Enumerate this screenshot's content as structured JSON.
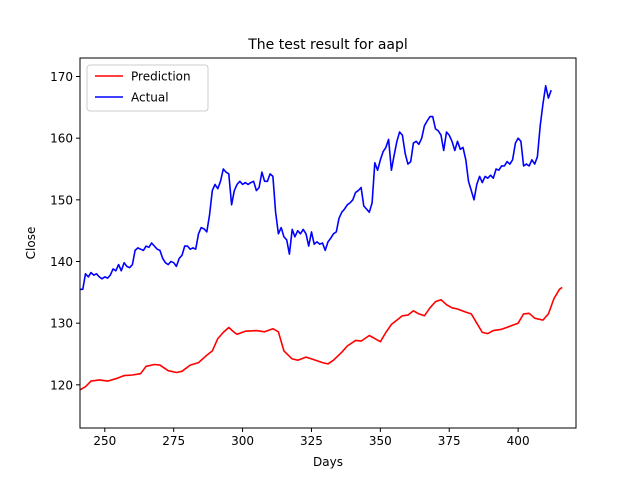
{
  "chart_data": {
    "type": "line",
    "title": "The test result for aapl",
    "xlabel": "Days",
    "ylabel": "Close",
    "xlim": [
      241,
      421
    ],
    "ylim": [
      113,
      173
    ],
    "xticks": [
      250,
      275,
      300,
      325,
      350,
      375,
      400
    ],
    "yticks": [
      120,
      130,
      140,
      150,
      160,
      170
    ],
    "grid": false,
    "legend_position": "top-left",
    "series": [
      {
        "name": "Prediction",
        "color": "#ff0000",
        "points": [
          [
            241,
            119.2
          ],
          [
            243,
            119.7
          ],
          [
            245,
            120.6
          ],
          [
            248,
            120.8
          ],
          [
            251,
            120.6
          ],
          [
            254,
            121.0
          ],
          [
            257,
            121.5
          ],
          [
            260,
            121.6
          ],
          [
            263,
            121.8
          ],
          [
            265,
            123.0
          ],
          [
            268,
            123.3
          ],
          [
            270,
            123.2
          ],
          [
            273,
            122.3
          ],
          [
            276,
            122.0
          ],
          [
            278,
            122.2
          ],
          [
            281,
            123.2
          ],
          [
            284,
            123.6
          ],
          [
            287,
            124.8
          ],
          [
            289,
            125.5
          ],
          [
            291,
            127.5
          ],
          [
            293,
            128.5
          ],
          [
            295,
            129.3
          ],
          [
            297,
            128.5
          ],
          [
            298,
            128.2
          ],
          [
            301,
            128.7
          ],
          [
            305,
            128.8
          ],
          [
            308,
            128.6
          ],
          [
            311,
            129.1
          ],
          [
            313,
            128.6
          ],
          [
            315,
            125.5
          ],
          [
            318,
            124.2
          ],
          [
            320,
            124.0
          ],
          [
            323,
            124.5
          ],
          [
            325,
            124.2
          ],
          [
            327,
            123.9
          ],
          [
            329,
            123.6
          ],
          [
            331,
            123.4
          ],
          [
            333,
            124.0
          ],
          [
            336,
            125.3
          ],
          [
            338,
            126.3
          ],
          [
            341,
            127.2
          ],
          [
            343,
            127.1
          ],
          [
            346,
            128.0
          ],
          [
            348,
            127.5
          ],
          [
            350,
            127.0
          ],
          [
            352,
            128.5
          ],
          [
            354,
            129.8
          ],
          [
            356,
            130.5
          ],
          [
            358,
            131.2
          ],
          [
            360,
            131.3
          ],
          [
            362,
            132.0
          ],
          [
            364,
            131.5
          ],
          [
            366,
            131.2
          ],
          [
            368,
            132.5
          ],
          [
            370,
            133.5
          ],
          [
            372,
            133.8
          ],
          [
            374,
            133.0
          ],
          [
            376,
            132.5
          ],
          [
            378,
            132.3
          ],
          [
            381,
            131.8
          ],
          [
            383,
            131.5
          ],
          [
            385,
            130.0
          ],
          [
            387,
            128.5
          ],
          [
            389,
            128.3
          ],
          [
            391,
            128.8
          ],
          [
            394,
            129.0
          ],
          [
            397,
            129.5
          ],
          [
            400,
            130.0
          ],
          [
            402,
            131.5
          ],
          [
            404,
            131.6
          ],
          [
            406,
            130.8
          ],
          [
            409,
            130.5
          ],
          [
            411,
            131.5
          ],
          [
            413,
            134.0
          ],
          [
            415,
            135.5
          ],
          [
            416,
            135.8
          ]
        ]
      },
      {
        "name": "Actual",
        "color": "#0000ff",
        "points": [
          [
            241,
            135.5
          ],
          [
            242,
            135.5
          ],
          [
            243,
            138.0
          ],
          [
            244,
            137.5
          ],
          [
            245,
            138.2
          ],
          [
            246,
            137.8
          ],
          [
            247,
            138.0
          ],
          [
            248,
            137.5
          ],
          [
            249,
            137.2
          ],
          [
            250,
            137.5
          ],
          [
            251,
            137.3
          ],
          [
            252,
            137.8
          ],
          [
            253,
            138.8
          ],
          [
            254,
            138.5
          ],
          [
            255,
            139.5
          ],
          [
            256,
            138.5
          ],
          [
            257,
            139.8
          ],
          [
            258,
            139.2
          ],
          [
            259,
            139.0
          ],
          [
            260,
            139.5
          ],
          [
            261,
            141.8
          ],
          [
            262,
            142.2
          ],
          [
            263,
            142.0
          ],
          [
            264,
            141.8
          ],
          [
            265,
            142.5
          ],
          [
            266,
            142.3
          ],
          [
            267,
            143.0
          ],
          [
            268,
            142.5
          ],
          [
            269,
            142.0
          ],
          [
            270,
            141.8
          ],
          [
            271,
            140.5
          ],
          [
            272,
            139.8
          ],
          [
            273,
            139.5
          ],
          [
            274,
            140.0
          ],
          [
            275,
            139.8
          ],
          [
            276,
            139.2
          ],
          [
            277,
            140.5
          ],
          [
            278,
            141.0
          ],
          [
            279,
            142.5
          ],
          [
            280,
            142.5
          ],
          [
            281,
            142.0
          ],
          [
            282,
            142.2
          ],
          [
            283,
            142.0
          ],
          [
            284,
            144.5
          ],
          [
            285,
            145.5
          ],
          [
            286,
            145.3
          ],
          [
            287,
            144.8
          ],
          [
            288,
            147.5
          ],
          [
            289,
            151.5
          ],
          [
            290,
            152.5
          ],
          [
            291,
            151.8
          ],
          [
            292,
            153.0
          ],
          [
            293,
            155.0
          ],
          [
            294,
            154.5
          ],
          [
            295,
            154.2
          ],
          [
            296,
            149.2
          ],
          [
            297,
            151.5
          ],
          [
            298,
            152.5
          ],
          [
            299,
            153.0
          ],
          [
            300,
            152.5
          ],
          [
            301,
            152.8
          ],
          [
            302,
            152.5
          ],
          [
            303,
            152.8
          ],
          [
            304,
            153.0
          ],
          [
            305,
            151.5
          ],
          [
            306,
            152.0
          ],
          [
            307,
            154.5
          ],
          [
            308,
            153.0
          ],
          [
            309,
            153.0
          ],
          [
            310,
            154.2
          ],
          [
            311,
            153.8
          ],
          [
            312,
            148.0
          ],
          [
            313,
            144.5
          ],
          [
            314,
            145.5
          ],
          [
            315,
            144.0
          ],
          [
            316,
            143.5
          ],
          [
            317,
            141.2
          ],
          [
            318,
            145.2
          ],
          [
            319,
            144.0
          ],
          [
            320,
            145.0
          ],
          [
            321,
            144.5
          ],
          [
            322,
            145.2
          ],
          [
            323,
            144.5
          ],
          [
            324,
            142.5
          ],
          [
            325,
            144.8
          ],
          [
            326,
            142.8
          ],
          [
            327,
            143.2
          ],
          [
            328,
            142.8
          ],
          [
            329,
            143.0
          ],
          [
            330,
            141.8
          ],
          [
            331,
            143.2
          ],
          [
            332,
            143.8
          ],
          [
            333,
            144.5
          ],
          [
            334,
            144.8
          ],
          [
            335,
            147.0
          ],
          [
            336,
            148.0
          ],
          [
            337,
            148.5
          ],
          [
            338,
            149.2
          ],
          [
            339,
            149.5
          ],
          [
            340,
            150.0
          ],
          [
            341,
            151.2
          ],
          [
            342,
            151.5
          ],
          [
            343,
            152.0
          ],
          [
            344,
            149.0
          ],
          [
            345,
            148.5
          ],
          [
            346,
            148.0
          ],
          [
            347,
            149.5
          ],
          [
            348,
            156.0
          ],
          [
            349,
            154.8
          ],
          [
            350,
            156.5
          ],
          [
            351,
            157.8
          ],
          [
            352,
            158.5
          ],
          [
            353,
            159.8
          ],
          [
            354,
            154.8
          ],
          [
            355,
            157.2
          ],
          [
            356,
            159.5
          ],
          [
            357,
            161.0
          ],
          [
            358,
            160.5
          ],
          [
            359,
            157.5
          ],
          [
            360,
            155.8
          ],
          [
            361,
            156.2
          ],
          [
            362,
            159.2
          ],
          [
            363,
            159.5
          ],
          [
            364,
            159.0
          ],
          [
            365,
            160.0
          ],
          [
            366,
            162.0
          ],
          [
            367,
            162.8
          ],
          [
            368,
            163.5
          ],
          [
            369,
            163.5
          ],
          [
            370,
            161.5
          ],
          [
            371,
            161.2
          ],
          [
            372,
            160.5
          ],
          [
            373,
            158.0
          ],
          [
            374,
            161.0
          ],
          [
            375,
            160.5
          ],
          [
            376,
            159.5
          ],
          [
            377,
            158.0
          ],
          [
            378,
            159.5
          ],
          [
            379,
            158.2
          ],
          [
            380,
            158.5
          ],
          [
            381,
            156.5
          ],
          [
            382,
            153.0
          ],
          [
            383,
            151.5
          ],
          [
            384,
            150.0
          ],
          [
            385,
            152.5
          ],
          [
            386,
            153.8
          ],
          [
            387,
            152.8
          ],
          [
            388,
            153.8
          ],
          [
            389,
            153.5
          ],
          [
            390,
            154.0
          ],
          [
            391,
            153.5
          ],
          [
            392,
            155.0
          ],
          [
            393,
            154.8
          ],
          [
            394,
            155.5
          ],
          [
            395,
            155.5
          ],
          [
            396,
            156.2
          ],
          [
            397,
            155.8
          ],
          [
            398,
            156.5
          ],
          [
            399,
            159.2
          ],
          [
            400,
            160.0
          ],
          [
            401,
            159.5
          ],
          [
            402,
            155.5
          ],
          [
            403,
            155.8
          ],
          [
            404,
            155.5
          ],
          [
            405,
            156.5
          ],
          [
            406,
            155.8
          ],
          [
            407,
            157.0
          ],
          [
            408,
            162.0
          ],
          [
            409,
            165.5
          ],
          [
            410,
            168.5
          ],
          [
            411,
            166.5
          ],
          [
            412,
            167.8
          ]
        ]
      }
    ]
  }
}
